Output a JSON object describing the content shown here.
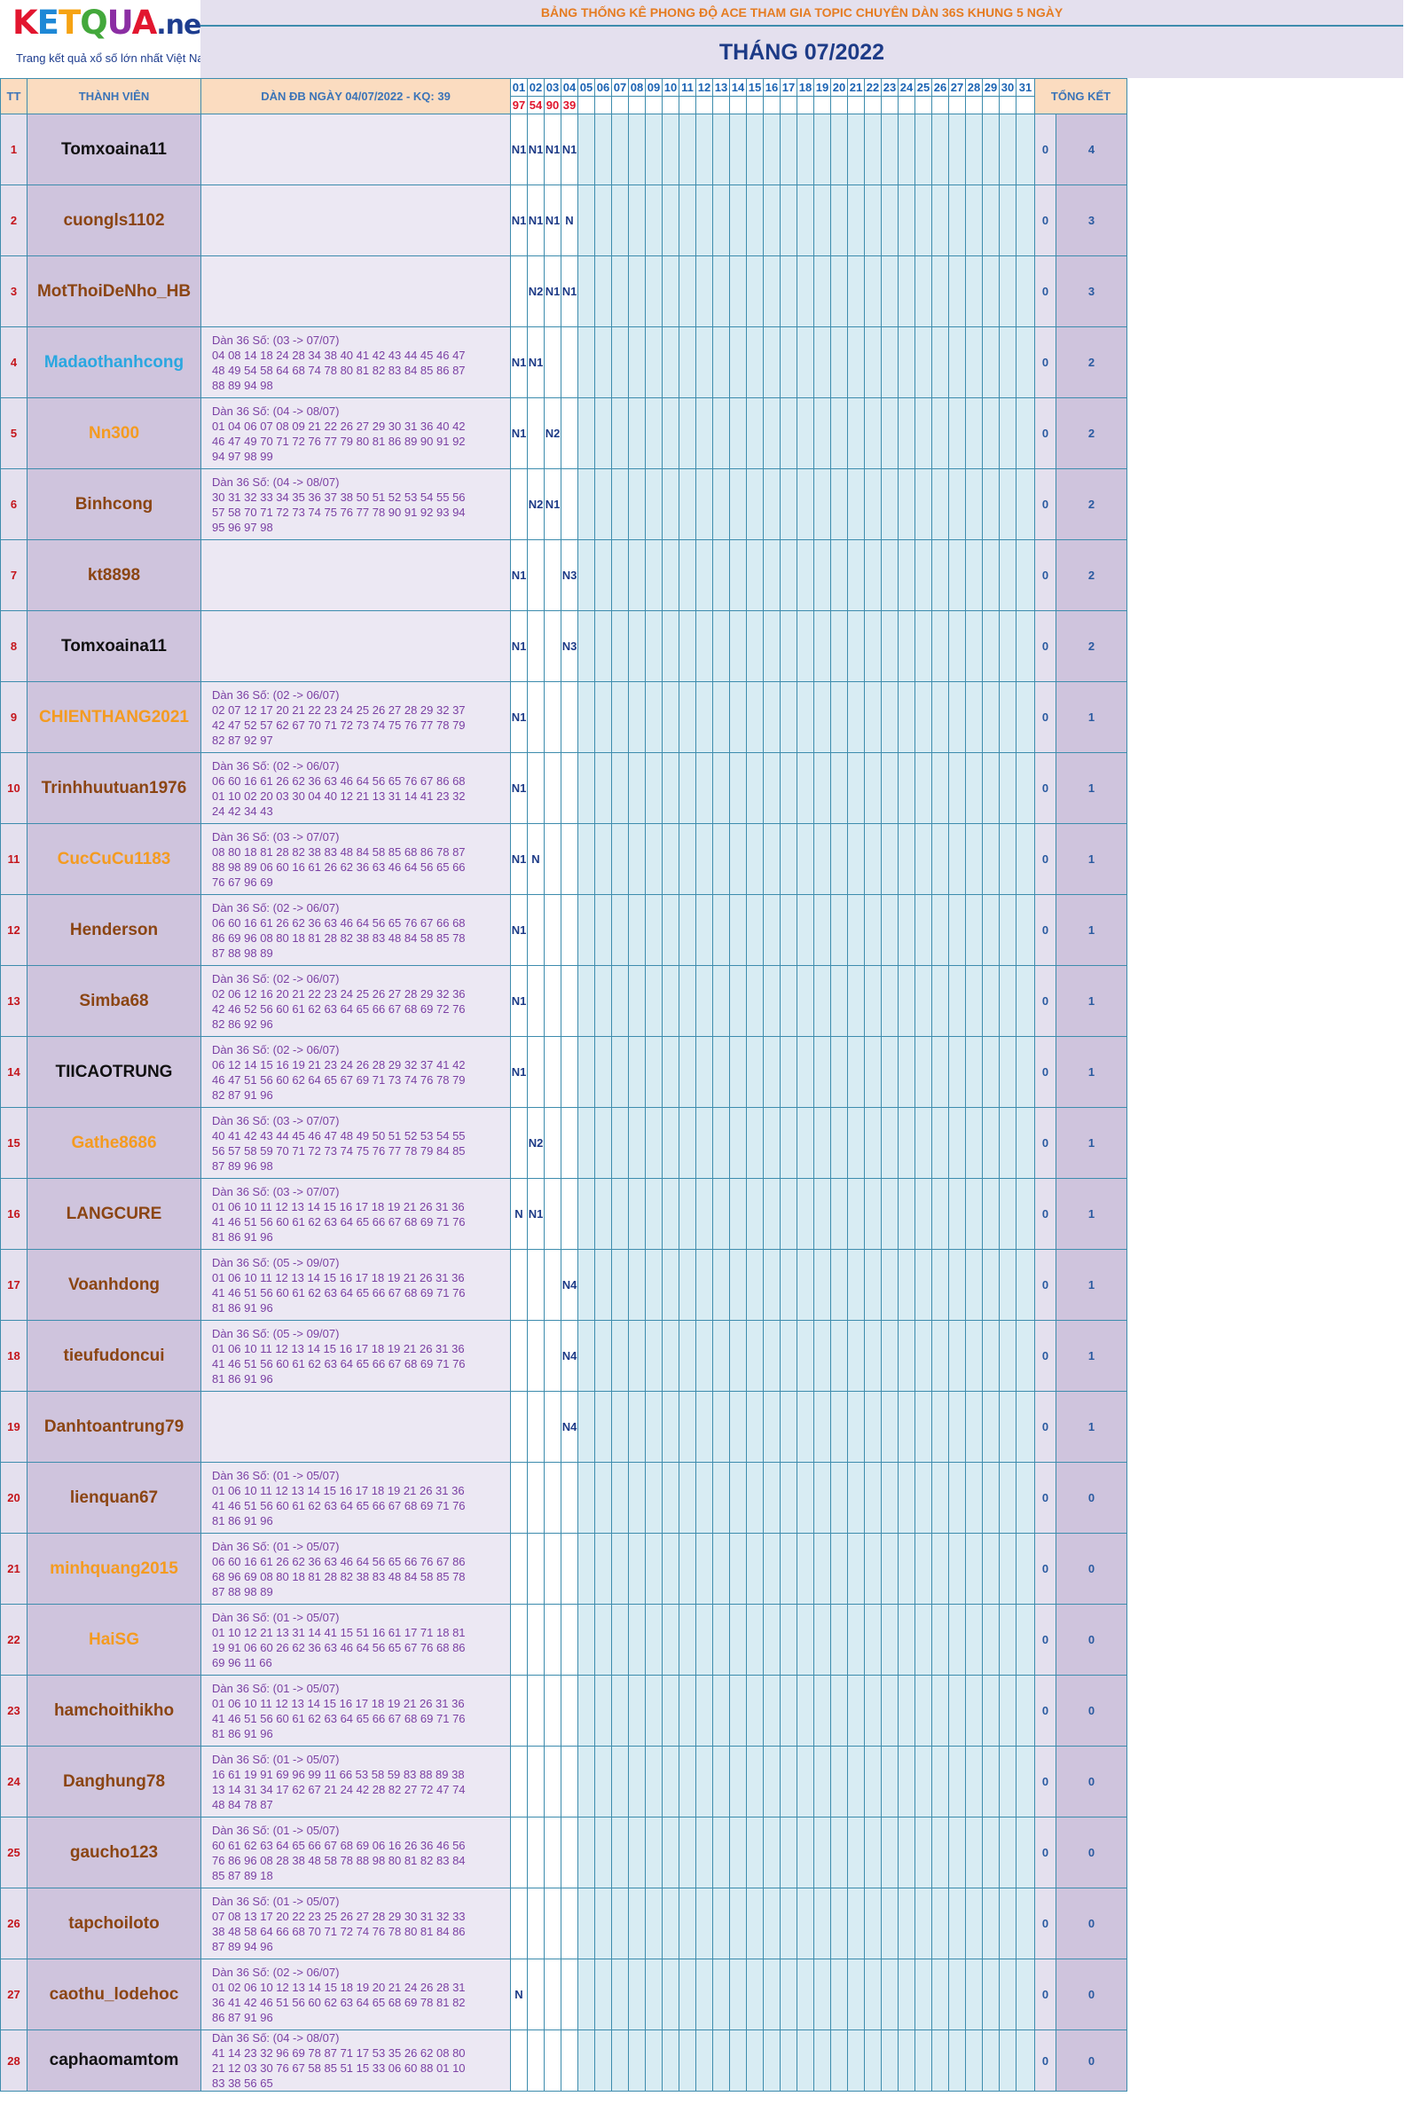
{
  "logo": {
    "p1": "K",
    "p2": "E",
    "p3": "T",
    "p4": "Q",
    "p5": "U",
    "p6": "A",
    "p7": ".net",
    "tagline": "Trang kết quả xổ số lớn nhất Việt Nam"
  },
  "header": {
    "subtitle": "BẢNG THỐNG KÊ PHONG ĐỘ ACE THAM GIA TOPIC CHUYÊN DÀN 36S KHUNG 5 NGÀY",
    "month": "THÁNG 07/2022",
    "col_tt": "TT",
    "col_member": "THÀNH VIÊN",
    "col_dan": "DÀN ĐB NGÀY 04/07/2022 - KQ: 39",
    "col_total": "TỔNG KẾT"
  },
  "days": [
    "01",
    "02",
    "03",
    "04",
    "05",
    "06",
    "07",
    "08",
    "09",
    "10",
    "11",
    "12",
    "13",
    "14",
    "15",
    "16",
    "17",
    "18",
    "19",
    "20",
    "21",
    "22",
    "23",
    "24",
    "25",
    "26",
    "27",
    "28",
    "29",
    "30",
    "31"
  ],
  "results": [
    "97",
    "54",
    "90",
    "39",
    "",
    "",
    "",
    "",
    "",
    "",
    "",
    "",
    "",
    "",
    "",
    "",
    "",
    "",
    "",
    "",
    "",
    "",
    "",
    "",
    "",
    "",
    "",
    "",
    "",
    "",
    ""
  ],
  "colors": {
    "black": "#111111",
    "brown": "#8b4513",
    "cyan": "#2aa7e0",
    "orange": "#f49b20",
    "red_text": "#c4161c",
    "border": "#3d8cad"
  },
  "rows": [
    {
      "tt": "1",
      "name": "Tomxoaina11",
      "color": "#111111",
      "dan": [],
      "days": [
        "N1",
        "N1",
        "N1",
        "N1"
      ],
      "s1": "0",
      "s2": "4"
    },
    {
      "tt": "2",
      "name": "cuongls1102",
      "color": "#8b4513",
      "dan": [],
      "days": [
        "N1",
        "N1",
        "N1",
        "N"
      ],
      "s1": "0",
      "s2": "3"
    },
    {
      "tt": "3",
      "name": "MotThoiDeNho_HB",
      "color": "#8b4513",
      "dan": [],
      "days": [
        "",
        "N2",
        "N1",
        "N1"
      ],
      "s1": "0",
      "s2": "3"
    },
    {
      "tt": "4",
      "name": "Madaothanhcong",
      "color": "#2aa7e0",
      "dan": [
        "Dàn 36 Số: (03 -> 07/07)",
        "04 08 14 18 24 28 34 38 40 41 42 43 44 45 46 47",
        "48 49 54 58 64 68 74 78 80 81 82 83 84 85 86 87",
        "88 89 94 98"
      ],
      "days": [
        "N1",
        "N1"
      ],
      "s1": "0",
      "s2": "2"
    },
    {
      "tt": "5",
      "name": "Nn300",
      "color": "#f49b20",
      "dan": [
        "Dàn 36 Số: (04 -> 08/07)",
        "01 04 06 07 08 09 21 22 26 27 29 30 31 36 40 42",
        "46 47 49 70 71 72 76 77 79 80 81 86 89 90 91 92",
        "94 97 98 99"
      ],
      "days": [
        "N1",
        "",
        "N2"
      ],
      "s1": "0",
      "s2": "2"
    },
    {
      "tt": "6",
      "name": "Binhcong",
      "color": "#8b4513",
      "dan": [
        "Dàn 36 Số: (04 -> 08/07)",
        "30 31 32 33 34 35 36 37 38 50 51 52 53 54 55 56",
        "57 58 70 71 72 73 74 75 76 77 78 90 91 92 93 94",
        "95 96 97 98"
      ],
      "days": [
        "",
        "N2",
        "N1"
      ],
      "s1": "0",
      "s2": "2"
    },
    {
      "tt": "7",
      "name": "kt8898",
      "color": "#8b4513",
      "dan": [],
      "days": [
        "N1",
        "",
        "",
        "N3"
      ],
      "s1": "0",
      "s2": "2"
    },
    {
      "tt": "8",
      "name": "Tomxoaina11",
      "color": "#111111",
      "dan": [],
      "days": [
        "N1",
        "",
        "",
        "N3"
      ],
      "s1": "0",
      "s2": "2"
    },
    {
      "tt": "9",
      "name": "CHIENTHANG2021",
      "color": "#f49b20",
      "dan": [
        "Dàn 36 Số: (02 -> 06/07)",
        "02 07 12 17 20 21 22 23 24 25 26 27 28 29 32 37",
        "42 47 52 57 62 67 70 71 72 73 74 75 76 77 78 79",
        "82 87 92 97"
      ],
      "days": [
        "N1"
      ],
      "s1": "0",
      "s2": "1"
    },
    {
      "tt": "10",
      "name": "Trinhhuutuan1976",
      "color": "#8b4513",
      "dan": [
        "Dàn 36 Số: (02 -> 06/07)",
        "06 60 16 61 26 62 36 63 46 64 56 65 76 67 86 68",
        "01 10 02 20 03 30 04 40 12 21 13 31 14 41 23 32",
        "24 42 34 43"
      ],
      "days": [
        "N1"
      ],
      "s1": "0",
      "s2": "1"
    },
    {
      "tt": "11",
      "name": "CucCuCu1183",
      "color": "#f49b20",
      "dan": [
        "Dàn 36 Số: (03 -> 07/07)",
        "08 80 18 81 28 82 38 83 48 84 58 85 68 86 78 87",
        "88 98 89 06 60 16 61 26 62 36 63 46 64 56 65 66",
        "76 67 96 69"
      ],
      "days": [
        "N1",
        "N"
      ],
      "s1": "0",
      "s2": "1"
    },
    {
      "tt": "12",
      "name": "Henderson",
      "color": "#8b4513",
      "dan": [
        "Dàn 36 Số: (02 -> 06/07)",
        "06 60 16 61 26 62 36 63 46 64 56 65 76 67 66 68",
        "86 69 96 08 80 18 81 28 82 38 83 48 84 58 85 78",
        "87 88 98 89"
      ],
      "days": [
        "N1"
      ],
      "s1": "0",
      "s2": "1"
    },
    {
      "tt": "13",
      "name": "Simba68",
      "color": "#8b4513",
      "dan": [
        "Dàn 36 Số: (02 -> 06/07)",
        "02 06 12 16 20 21 22 23 24 25 26 27 28 29 32 36",
        "42 46 52 56 60 61 62 63 64 65 66 67 68 69 72 76",
        "82 86 92 96"
      ],
      "days": [
        "N1"
      ],
      "s1": "0",
      "s2": "1"
    },
    {
      "tt": "14",
      "name": "TIICAOTRUNG",
      "color": "#111111",
      "dan": [
        "Dàn 36 Số: (02 -> 06/07)",
        "06 12 14 15 16 19 21 23 24 26 28 29 32 37 41 42",
        "46 47 51 56 60 62 64 65 67 69 71 73 74 76 78 79",
        "82 87 91 96"
      ],
      "days": [
        "N1"
      ],
      "s1": "0",
      "s2": "1"
    },
    {
      "tt": "15",
      "name": "Gathe8686",
      "color": "#f49b20",
      "dan": [
        "Dàn 36 Số: (03 -> 07/07)",
        "40 41 42 43 44 45 46 47 48 49 50 51 52 53 54 55",
        "56 57 58 59 70 71 72 73 74 75 76 77 78 79 84 85",
        "87 89 96 98"
      ],
      "days": [
        "",
        "N2"
      ],
      "s1": "0",
      "s2": "1"
    },
    {
      "tt": "16",
      "name": "LANGCURE",
      "color": "#8b4513",
      "dan": [
        "Dàn 36 Số: (03 -> 07/07)",
        "01 06 10 11 12 13 14 15 16 17 18 19 21 26 31 36",
        "41 46 51 56 60 61 62 63 64 65 66 67 68 69 71 76",
        "81 86 91 96"
      ],
      "days": [
        "N",
        "N1"
      ],
      "s1": "0",
      "s2": "1"
    },
    {
      "tt": "17",
      "name": "Voanhdong",
      "color": "#8b4513",
      "dan": [
        "Dàn 36 Số: (05 -> 09/07)",
        "01 06 10 11 12 13 14 15 16 17 18 19 21 26 31 36",
        "41 46 51 56 60 61 62 63 64 65 66 67 68 69 71 76",
        "81 86 91 96"
      ],
      "days": [
        "",
        "",
        "",
        "N4"
      ],
      "s1": "0",
      "s2": "1"
    },
    {
      "tt": "18",
      "name": "tieufudoncui",
      "color": "#8b4513",
      "dan": [
        "Dàn 36 Số: (05 -> 09/07)",
        "01 06 10 11 12 13 14 15 16 17 18 19 21 26 31 36",
        "41 46 51 56 60 61 62 63 64 65 66 67 68 69 71 76",
        "81 86 91 96"
      ],
      "days": [
        "",
        "",
        "",
        "N4"
      ],
      "s1": "0",
      "s2": "1"
    },
    {
      "tt": "19",
      "name": "Danhtoantrung79",
      "color": "#8b4513",
      "dan": [],
      "days": [
        "",
        "",
        "",
        "N4"
      ],
      "s1": "0",
      "s2": "1"
    },
    {
      "tt": "20",
      "name": "lienquan67",
      "color": "#8b4513",
      "dan": [
        "Dàn 36 Số: (01 -> 05/07)",
        "01 06 10 11 12 13 14 15 16 17 18 19 21 26 31 36",
        "41 46 51 56 60 61 62 63 64 65 66 67 68 69 71 76",
        "81 86 91 96"
      ],
      "days": [],
      "s1": "0",
      "s2": "0"
    },
    {
      "tt": "21",
      "name": "minhquang2015",
      "color": "#f49b20",
      "dan": [
        "Dàn 36 Số: (01 -> 05/07)",
        "06 60 16 61 26 62 36 63 46 64 56 65 66 76 67 86",
        "68 96 69 08 80 18 81 28 82 38 83 48 84 58 85 78",
        "87 88 98 89"
      ],
      "days": [],
      "s1": "0",
      "s2": "0"
    },
    {
      "tt": "22",
      "name": "HaiSG",
      "color": "#f49b20",
      "dan": [
        "Dàn 36 Số: (01 -> 05/07)",
        "01 10 12 21 13 31 14 41 15 51 16 61 17 71 18 81",
        "19 91 06 60 26 62 36 63 46 64 56 65 67 76 68 86",
        "69 96 11 66"
      ],
      "days": [],
      "s1": "0",
      "s2": "0"
    },
    {
      "tt": "23",
      "name": "hamchoithikho",
      "color": "#8b4513",
      "dan": [
        "Dàn 36 Số: (01 -> 05/07)",
        "01 06 10 11 12 13 14 15 16 17 18 19 21 26 31 36",
        "41 46 51 56 60 61 62 63 64 65 66 67 68 69 71 76",
        "81 86 91 96"
      ],
      "days": [],
      "s1": "0",
      "s2": "0"
    },
    {
      "tt": "24",
      "name": "Danghung78",
      "color": "#8b4513",
      "dan": [
        "Dàn 36 Số: (01 -> 05/07)",
        "16 61 19 91 69 96 99 11 66 53 58 59 83 88 89 38",
        "13 14 31 34 17 62 67 21 24 42 28 82 27 72 47 74",
        "48 84 78 87"
      ],
      "days": [],
      "s1": "0",
      "s2": "0"
    },
    {
      "tt": "25",
      "name": "gaucho123",
      "color": "#8b4513",
      "dan": [
        "Dàn 36 Số: (01 -> 05/07)",
        "60 61 62 63 64 65 66 67 68 69 06 16 26 36 46 56",
        "76 86 96 08 28 38 48 58 78 88 98 80 81 82 83 84",
        "85 87 89 18"
      ],
      "days": [],
      "s1": "0",
      "s2": "0"
    },
    {
      "tt": "26",
      "name": "tapchoiloto",
      "color": "#8b4513",
      "dan": [
        "Dàn 36 Số: (01 -> 05/07)",
        "07 08 13 17 20 22 23 25 26 27 28 29 30 31 32 33",
        "38 48 58 64 66 68 70 71 72 74 76 78 80 81 84 86",
        "87 89 94 96"
      ],
      "days": [],
      "s1": "0",
      "s2": "0"
    },
    {
      "tt": "27",
      "name": "caothu_lodehoc",
      "color": "#8b4513",
      "dan": [
        "Dàn 36 Số: (02 -> 06/07)",
        "01 02 06 10 12 13 14 15 18 19 20 21 24 26 28 31",
        "36 41 42 46 51 56 60 62 63 64 65 68 69 78 81 82",
        "86 87 91 96"
      ],
      "days": [
        "N"
      ],
      "s1": "0",
      "s2": "0"
    },
    {
      "tt": "28",
      "name": "caphaomamtom",
      "color": "#111111",
      "dan": [
        "Dàn 36 Số: (04 -> 08/07)",
        "41 14 23 32 96 69 78 87 71 17 53 35 26 62 08 80",
        "21 12 03 30 76 67 58 85 51 15 33 06 60 88 01 10",
        "83 38 56 65"
      ],
      "days": [],
      "s1": "0",
      "s2": "0"
    }
  ]
}
